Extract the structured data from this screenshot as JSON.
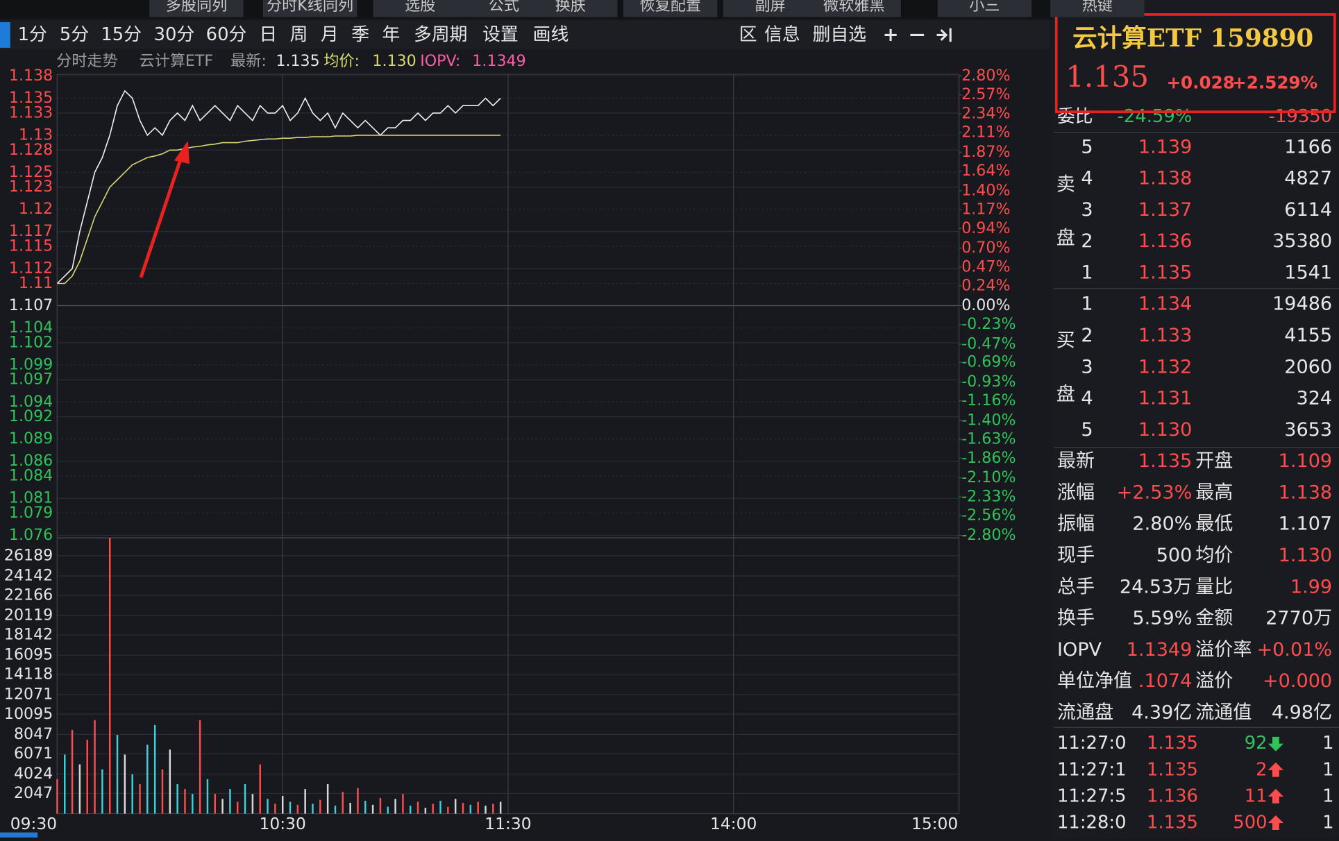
{
  "toolbar": {
    "top": [
      "多股同列",
      "分时K线同列",
      "选股",
      "公式",
      "换肤",
      "恢复配置",
      "副屏",
      "微软雅黑",
      "小三",
      "热键"
    ],
    "periods": [
      "1分",
      "5分",
      "15分",
      "30分",
      "60分",
      "日",
      "周",
      "月",
      "季",
      "年",
      "多周期",
      "设置",
      "画线"
    ],
    "actions": [
      "区",
      "信息",
      "删自选"
    ]
  },
  "chart_header": {
    "title": "分时走势",
    "name": "云计算ETF",
    "latest_label": "最新:",
    "latest": "1.135",
    "avg_label": "均价:",
    "avg": "1.130",
    "iopv_label": "IOPV:",
    "iopv": "1.1349"
  },
  "chart_data": [
    {
      "type": "line",
      "grid": true,
      "x": [
        0,
        2,
        4,
        6,
        8,
        10,
        12,
        14,
        16,
        18,
        20,
        22,
        24,
        26,
        28,
        30,
        32,
        34,
        36,
        38,
        40,
        42,
        44,
        46,
        48,
        50,
        52,
        54,
        56,
        58,
        60,
        62,
        64,
        66,
        68,
        70,
        72,
        74,
        76,
        78,
        80,
        82,
        84,
        86,
        88,
        90,
        92,
        94,
        96,
        98,
        100,
        102,
        104,
        106,
        108,
        110,
        112,
        114,
        116,
        118
      ],
      "xlim": [
        0,
        240
      ],
      "ylim": [
        1.076,
        1.138
      ],
      "yticks": [
        1.138,
        1.135,
        1.133,
        1.13,
        1.128,
        1.125,
        1.123,
        1.12,
        1.117,
        1.115,
        1.112,
        1.11,
        1.107,
        1.104,
        1.102,
        1.099,
        1.097,
        1.094,
        1.092,
        1.089,
        1.086,
        1.084,
        1.081,
        1.079,
        1.076
      ],
      "y2lim": [
        -2.8,
        2.8
      ],
      "y2ticks": [
        {
          "value": 2.8,
          "label": "2.80%"
        },
        {
          "value": 2.57,
          "label": "2.57%"
        },
        {
          "value": 2.34,
          "label": "2.34%"
        },
        {
          "value": 2.11,
          "label": "2.11%"
        },
        {
          "value": 1.87,
          "label": "1.87%"
        },
        {
          "value": 1.64,
          "label": "1.64%"
        },
        {
          "value": 1.4,
          "label": "1.40%"
        },
        {
          "value": 1.17,
          "label": "1.17%"
        },
        {
          "value": 0.94,
          "label": "0.94%"
        },
        {
          "value": 0.7,
          "label": "0.70%"
        },
        {
          "value": 0.47,
          "label": "0.47%"
        },
        {
          "value": 0.24,
          "label": "0.24%"
        },
        {
          "value": 0,
          "label": "0.00%"
        },
        {
          "value": -0.23,
          "label": "-0.23%"
        },
        {
          "value": -0.47,
          "label": "-0.47%"
        },
        {
          "value": -0.69,
          "label": "-0.69%"
        },
        {
          "value": -0.93,
          "label": "-0.93%"
        },
        {
          "value": -1.16,
          "label": "-1.16%"
        },
        {
          "value": -1.4,
          "label": "-1.40%"
        },
        {
          "value": -1.63,
          "label": "-1.63%"
        },
        {
          "value": -1.86,
          "label": "-1.86%"
        },
        {
          "value": -2.1,
          "label": "-2.10%"
        },
        {
          "value": -2.33,
          "label": "-2.33%"
        },
        {
          "value": -2.56,
          "label": "-2.56%"
        },
        {
          "value": -2.8,
          "label": "-2.80%"
        }
      ],
      "series": [
        {
          "color": "#f0f0f0",
          "values": [
            1.11,
            1.111,
            1.112,
            1.117,
            1.121,
            1.125,
            1.127,
            1.13,
            1.134,
            1.136,
            1.135,
            1.132,
            1.13,
            1.131,
            1.13,
            1.132,
            1.133,
            1.132,
            1.134,
            1.132,
            1.133,
            1.134,
            1.133,
            1.132,
            1.134,
            1.133,
            1.132,
            1.134,
            1.133,
            1.133,
            1.134,
            1.132,
            1.133,
            1.135,
            1.133,
            1.132,
            1.133,
            1.131,
            1.133,
            1.132,
            1.131,
            1.132,
            1.131,
            1.13,
            1.131,
            1.131,
            1.132,
            1.132,
            1.133,
            1.132,
            1.133,
            1.133,
            1.134,
            1.133,
            1.134,
            1.134,
            1.134,
            1.135,
            1.134,
            1.135
          ]
        },
        {
          "color": "#d8d870",
          "values": [
            1.11,
            1.11,
            1.111,
            1.113,
            1.116,
            1.119,
            1.121,
            1.123,
            1.124,
            1.125,
            1.126,
            1.1265,
            1.127,
            1.1272,
            1.1275,
            1.128,
            1.128,
            1.1282,
            1.1284,
            1.1285,
            1.1287,
            1.1288,
            1.129,
            1.129,
            1.129,
            1.1292,
            1.1293,
            1.1294,
            1.1295,
            1.1295,
            1.1296,
            1.1296,
            1.1297,
            1.1297,
            1.1298,
            1.1298,
            1.1298,
            1.1299,
            1.1299,
            1.1299,
            1.13,
            1.13,
            1.13,
            1.13,
            1.13,
            1.13,
            1.13,
            1.13,
            1.13,
            1.13,
            1.13,
            1.13,
            1.13,
            1.13,
            1.13,
            1.13,
            1.13,
            1.13,
            1.13,
            1.13
          ]
        }
      ]
    },
    {
      "type": "bar",
      "grid": true,
      "x": [
        0,
        2,
        4,
        6,
        8,
        10,
        12,
        14,
        16,
        18,
        20,
        22,
        24,
        26,
        28,
        30,
        32,
        34,
        36,
        38,
        40,
        42,
        44,
        46,
        48,
        50,
        52,
        54,
        56,
        58,
        60,
        62,
        64,
        66,
        68,
        70,
        72,
        74,
        76,
        78,
        80,
        82,
        84,
        86,
        88,
        90,
        92,
        94,
        96,
        98,
        100,
        102,
        104,
        106,
        108,
        110,
        112,
        114,
        116,
        118
      ],
      "xlim": [
        0,
        240
      ],
      "xticks": [
        {
          "value": 0,
          "label": "09:30"
        },
        {
          "value": 60,
          "label": "10:30"
        },
        {
          "value": 120,
          "label": "11:30"
        },
        {
          "value": 180,
          "label": "14:00"
        },
        {
          "value": 240,
          "label": "15:00"
        }
      ],
      "ylim": [
        0,
        28000
      ],
      "yticks": [
        26189,
        24142,
        22166,
        20119,
        18142,
        16095,
        14118,
        12071,
        10095,
        8047,
        6071,
        4024,
        2047
      ],
      "series": [
        {
          "values": [
            3500,
            6000,
            8500,
            5000,
            7500,
            9500,
            4500,
            28000,
            8000,
            6000,
            4000,
            3000,
            7000,
            9000,
            4500,
            6500,
            3000,
            2500,
            2000,
            9500,
            3500,
            2000,
            1500,
            2500,
            1200,
            3000,
            2000,
            5000,
            1500,
            1000,
            1800,
            1200,
            900,
            2500,
            1000,
            1400,
            3000,
            800,
            2200,
            1100,
            2600,
            1300,
            900,
            1600,
            700,
            1500,
            2000,
            800,
            1200,
            600,
            1000,
            1300,
            700,
            1500,
            1100,
            900,
            1200,
            800,
            1000,
            1200
          ],
          "colors": [
            "#ff4d4d",
            "#3fd0dc",
            "#ff4d4d",
            "#d8d8d8",
            "#ff4d4d",
            "#ff4d4d",
            "#3fd0dc",
            "#ff4d4d",
            "#3fd0dc",
            "#d8d8d8",
            "#3fd0dc",
            "#ff4d4d",
            "#3fd0dc",
            "#3fd0dc",
            "#ff4d4d",
            "#d8d8d8",
            "#3fd0dc",
            "#ff4d4d",
            "#3fd0dc",
            "#ff4d4d",
            "#3fd0dc",
            "#ff4d4d",
            "#d8d8d8",
            "#3fd0dc",
            "#ff4d4d",
            "#3fd0dc",
            "#d8d8d8",
            "#ff4d4d",
            "#3fd0dc",
            "#ff4d4d",
            "#d8d8d8",
            "#3fd0dc",
            "#ff4d4d",
            "#d8d8d8",
            "#3fd0dc",
            "#ff4d4d",
            "#d8d8d8",
            "#3fd0dc",
            "#ff4d4d",
            "#d8d8d8",
            "#ff4d4d",
            "#3fd0dc",
            "#d8d8d8",
            "#ff4d4d",
            "#3fd0dc",
            "#d8d8d8",
            "#ff4d4d",
            "#3fd0dc",
            "#ff4d4d",
            "#d8d8d8",
            "#ff4d4d",
            "#3fd0dc",
            "#ff4d4d",
            "#d8d8d8",
            "#ff4d4d",
            "#3fd0dc",
            "#ff4d4d",
            "#d8d8d8",
            "#ff4d4d",
            "#d8d8d8"
          ]
        }
      ]
    }
  ],
  "quote": {
    "title": "云计算ETF 159890",
    "price": "1.135",
    "change": "+0.028",
    "change_pct": "+2.529%",
    "ratio_label": "委比",
    "ratio": "-24.59%",
    "ratio_diff": "-19350",
    "sell_label": [
      "卖",
      "盘"
    ],
    "buy_label": [
      "买",
      "盘"
    ],
    "sell": [
      {
        "level": "5",
        "price": "1.139",
        "volume": "1166"
      },
      {
        "level": "4",
        "price": "1.138",
        "volume": "4827"
      },
      {
        "level": "3",
        "price": "1.137",
        "volume": "6114"
      },
      {
        "level": "2",
        "price": "1.136",
        "volume": "35380"
      },
      {
        "level": "1",
        "price": "1.135",
        "volume": "1541"
      }
    ],
    "buy": [
      {
        "level": "1",
        "price": "1.134",
        "volume": "19486"
      },
      {
        "level": "2",
        "price": "1.133",
        "volume": "4155"
      },
      {
        "level": "3",
        "price": "1.132",
        "volume": "2060"
      },
      {
        "level": "4",
        "price": "1.131",
        "volume": "324"
      },
      {
        "level": "5",
        "price": "1.130",
        "volume": "3653"
      }
    ],
    "stats": [
      {
        "label": "最新",
        "value": "1.135",
        "color": "#ff4d4d"
      },
      {
        "label": "开盘",
        "value": "1.109",
        "color": "#ff4d4d"
      },
      {
        "label": "涨幅",
        "value": "+2.53%",
        "color": "#ff4d4d"
      },
      {
        "label": "最高",
        "value": "1.138",
        "color": "#ff4d4d"
      },
      {
        "label": "振幅",
        "value": "2.80%",
        "color": "#e6e6e6"
      },
      {
        "label": "最低",
        "value": "1.107",
        "color": "#e6e6e6"
      },
      {
        "label": "现手",
        "value": "500",
        "color": "#e6e6e6"
      },
      {
        "label": "均价",
        "value": "1.130",
        "color": "#ff4d4d"
      },
      {
        "label": "总手",
        "value": "24.53万",
        "color": "#e6e6e6"
      },
      {
        "label": "量比",
        "value": "1.99",
        "color": "#ff4d4d"
      },
      {
        "label": "换手",
        "value": "5.59%",
        "color": "#e6e6e6"
      },
      {
        "label": "金额",
        "value": "2770万",
        "color": "#e6e6e6"
      },
      {
        "label": "IOPV",
        "value": "1.1349",
        "color": "#ff4d4d"
      },
      {
        "label": "溢价率",
        "value": "+0.01%",
        "color": "#ff4d4d"
      },
      {
        "label": "单位净值",
        "value": ".1074",
        "color": "#ff4d4d"
      },
      {
        "label": "溢价",
        "value": "+0.000",
        "color": "#ff4d4d"
      },
      {
        "label": "流通盘",
        "value": "4.39亿",
        "color": "#e6e6e6"
      },
      {
        "label": "流通值",
        "value": "4.98亿",
        "color": "#e6e6e6"
      }
    ],
    "trades": [
      {
        "time": "11:27:0",
        "price": "1.135",
        "volume": "92",
        "arrow": "down",
        "count": "1"
      },
      {
        "time": "11:27:1",
        "price": "1.135",
        "volume": "2",
        "arrow": "up",
        "count": "1"
      },
      {
        "time": "11:27:5",
        "price": "1.136",
        "volume": "11",
        "arrow": "up",
        "count": "1"
      },
      {
        "time": "11:28:0",
        "price": "1.135",
        "volume": "500",
        "arrow": "up",
        "count": "1"
      }
    ]
  }
}
